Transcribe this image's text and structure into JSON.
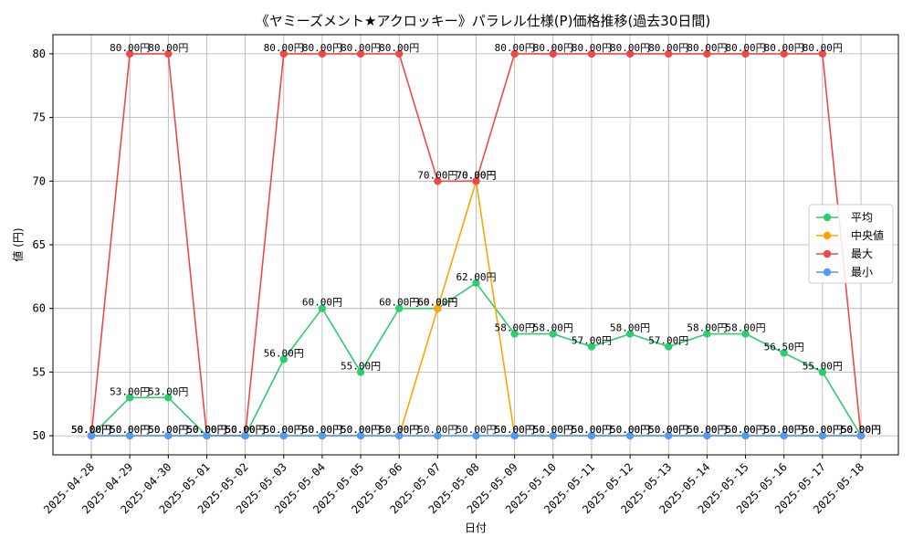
{
  "chart_data": {
    "type": "line",
    "title": "《ヤミーズメント★アクロッキー》パラレル仕様(P)価格推移(過去30日間)",
    "xlabel": "日付",
    "ylabel": "値 (円)",
    "ylim": [
      48.5,
      81.5
    ],
    "yticks": [
      50,
      55,
      60,
      65,
      70,
      75,
      80
    ],
    "grid": true,
    "legend_position": "center-right",
    "value_suffix": "円",
    "categories": [
      "2025-04-28",
      "2025-04-29",
      "2025-04-30",
      "2025-05-01",
      "2025-05-02",
      "2025-05-03",
      "2025-05-04",
      "2025-05-05",
      "2025-05-06",
      "2025-05-07",
      "2025-05-08",
      "2025-05-09",
      "2025-05-10",
      "2025-05-11",
      "2025-05-12",
      "2025-05-13",
      "2025-05-14",
      "2025-05-15",
      "2025-05-16",
      "2025-05-17",
      "2025-05-18"
    ],
    "series": [
      {
        "key": "avg",
        "name": "平均",
        "color": "#2ecc71",
        "values": [
          50,
          53,
          53,
          50,
          50,
          56,
          60,
          55,
          60,
          60,
          62,
          58,
          58,
          57,
          58,
          57,
          58,
          58,
          56.5,
          55,
          50
        ]
      },
      {
        "key": "median",
        "name": "中央値",
        "color": "#ffa500",
        "values": [
          50,
          50,
          50,
          50,
          50,
          50,
          50,
          50,
          50,
          60,
          70,
          50,
          50,
          50,
          50,
          50,
          50,
          50,
          50,
          50,
          50
        ]
      },
      {
        "key": "max",
        "name": "最大",
        "color": "#f04848",
        "values": [
          50,
          80,
          80,
          50,
          50,
          80,
          80,
          80,
          80,
          70,
          70,
          80,
          80,
          80,
          80,
          80,
          80,
          80,
          80,
          80,
          50
        ]
      },
      {
        "key": "min",
        "name": "最小",
        "color": "#4f9cf5",
        "values": [
          50,
          50,
          50,
          50,
          50,
          50,
          50,
          50,
          50,
          50,
          50,
          50,
          50,
          50,
          50,
          50,
          50,
          50,
          50,
          50,
          50
        ]
      }
    ]
  }
}
